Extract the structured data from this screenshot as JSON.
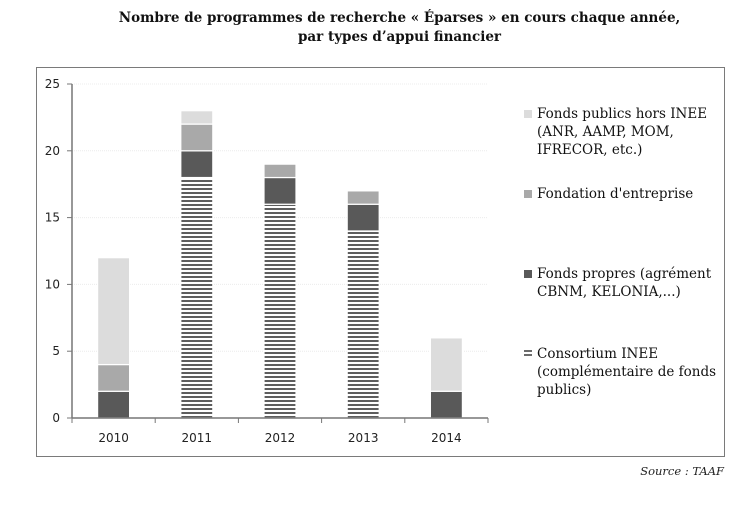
{
  "chart_data": {
    "type": "bar",
    "stacked": true,
    "title": "Nombre de programmes de recherche « Éparses » en cours chaque année,",
    "subtitle": "par types d’appui financier",
    "xlabel": "",
    "ylabel": "",
    "categories": [
      "2010",
      "2011",
      "2012",
      "2013",
      "2014"
    ],
    "ylim": [
      0,
      25
    ],
    "yticks": [
      0,
      5,
      10,
      15,
      20,
      25
    ],
    "grid": true,
    "legend_position": "right",
    "series": [
      {
        "name": "Consortium INEE (complémentaire de fonds publics)",
        "values": [
          0,
          18,
          16,
          14,
          0
        ],
        "color": "#6b6b6b",
        "pattern": "horizontal-stripes"
      },
      {
        "name": "Fonds propres (agrément CBNM, KELONIA,...)",
        "values": [
          2,
          2,
          2,
          2,
          2
        ],
        "color": "#595959",
        "pattern": "solid"
      },
      {
        "name": "Fondation d'entreprise",
        "values": [
          2,
          2,
          1,
          1,
          0
        ],
        "color": "#a9a9a9",
        "pattern": "solid"
      },
      {
        "name": "Fonds publics hors INEE (ANR, AAMP, MOM, IFRECOR, etc.)",
        "values": [
          8,
          1,
          0,
          0,
          4
        ],
        "color": "#dcdcdc",
        "pattern": "solid"
      }
    ],
    "totals": [
      12,
      23,
      19,
      17,
      6
    ]
  },
  "legend": [
    {
      "lines": [
        "Fonds publics hors INEE",
        "(ANR, AAMP, MOM,",
        "IFRECOR, etc.)"
      ],
      "color": "#dcdcdc",
      "series_index": 3
    },
    {
      "lines": [
        "Fondation d'entreprise"
      ],
      "color": "#a9a9a9",
      "series_index": 2
    },
    {
      "lines": [
        "Fonds propres (agrément",
        "CBNM, KELONIA,...)"
      ],
      "color": "#595959",
      "series_index": 1
    },
    {
      "lines": [
        "Consortium INEE",
        "(complémentaire de fonds",
        "publics)"
      ],
      "color": "#6b6b6b",
      "series_index": 0,
      "pattern": "horizontal-stripes"
    }
  ],
  "source": "Source : TAAF"
}
